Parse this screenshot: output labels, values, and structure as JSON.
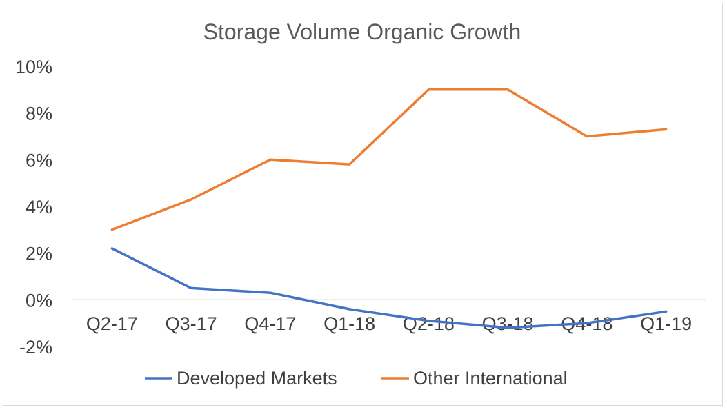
{
  "chart_data": {
    "type": "line",
    "title": "Storage Volume Organic Growth",
    "xlabel": "",
    "ylabel": "",
    "categories": [
      "Q2-17",
      "Q3-17",
      "Q4-17",
      "Q1-18",
      "Q2-18",
      "Q3-18",
      "Q4-18",
      "Q1-19"
    ],
    "y_ticks": [
      "10%",
      "8%",
      "6%",
      "4%",
      "2%",
      "0%",
      "-2%"
    ],
    "y_tick_values": [
      10,
      8,
      6,
      4,
      2,
      0,
      -2
    ],
    "ylim": [
      -2,
      10
    ],
    "grid": false,
    "legend_position": "bottom",
    "series": [
      {
        "name": "Developed Markets",
        "color": "#4472c4",
        "values": [
          2.2,
          0.5,
          0.3,
          -0.4,
          -0.9,
          -1.2,
          -1.0,
          -0.5
        ]
      },
      {
        "name": "Other International",
        "color": "#ed7d31",
        "values": [
          3.0,
          4.3,
          6.0,
          5.8,
          9.0,
          9.0,
          7.0,
          7.3
        ]
      }
    ]
  }
}
